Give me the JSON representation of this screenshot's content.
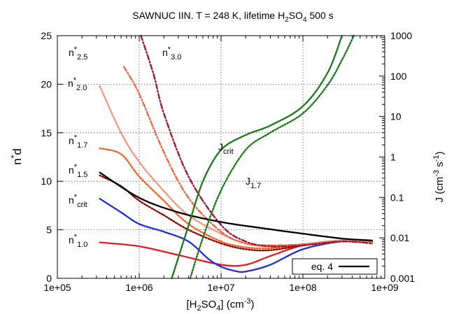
{
  "chart_data": {
    "type": "line",
    "title": "SAWNUC IIN. T = 248 K, lifetime H2SO4 500 s",
    "title_parts": {
      "pre": "SAWNUC IIN. T = 248 K, lifetime H",
      "sub": "2",
      "mid": "SO",
      "sub2": "4",
      "post": " 500 s"
    },
    "xlabel": {
      "pre": "[H",
      "sub": "2",
      "mid": "SO",
      "sub2": "4",
      "post": "] (cm",
      "sup": "-3",
      "end": ")"
    },
    "ylabel": {
      "pre": "n",
      "sup": "*",
      "post": "d"
    },
    "y2label": {
      "pre": "J (cm",
      "sup": "-3",
      "mid": " s",
      "sup2": "-1",
      "end": ")"
    },
    "x_scale": "log",
    "xlim": [
      100000,
      1000000000
    ],
    "ylim": [
      0,
      25
    ],
    "y2_scale": "log",
    "y2lim": [
      0.001,
      1000
    ],
    "grid": true,
    "legend_position": "bottom-right",
    "x_ticks": [
      "1e+05",
      "1e+06",
      "1e+07",
      "1e+08",
      "1e+09"
    ],
    "y_ticks": [
      "0",
      "5",
      "10",
      "15",
      "20",
      "25"
    ],
    "y2_ticks": [
      "0.001",
      "0.01",
      "0.1",
      "1",
      "10",
      "100",
      "1000"
    ],
    "legend": [
      {
        "label": "eq. 4",
        "color": "#000000"
      }
    ],
    "series": [
      {
        "name": "n*1.0",
        "axis": "y",
        "color": "#e41a1c",
        "dash": "solid",
        "x": [
          330000.0,
          1000000.0,
          3000000.0,
          10000000.0,
          20000000.0,
          40000000.0,
          100000000.0,
          300000000.0,
          700000000.0
        ],
        "y": [
          3.7,
          3.3,
          2.4,
          1.4,
          1.4,
          2.3,
          3.4,
          3.9,
          3.8
        ]
      },
      {
        "name": "n*crit",
        "axis": "y",
        "color": "#1f2de0",
        "dash": "solid",
        "x": [
          330000.0,
          600000.0,
          1000000.0,
          2000000.0,
          4000000.0,
          7000000.0,
          10000000.0,
          15000000.0,
          20000000.0,
          40000000.0,
          100000000.0,
          300000000.0,
          700000000.0
        ],
        "y": [
          8.2,
          6.8,
          5.6,
          4.8,
          3.8,
          2.0,
          1.2,
          0.75,
          0.7,
          1.4,
          3.0,
          3.8,
          3.7
        ]
      },
      {
        "name": "n*1.5",
        "axis": "y",
        "color": "#8b0000",
        "dash": "dot",
        "x": [
          330000.0,
          600000.0,
          1000000.0,
          2000000.0,
          4000000.0,
          10000000.0,
          20000000.0,
          40000000.0,
          100000000.0,
          300000000.0,
          700000000.0
        ],
        "y": [
          10.6,
          9.5,
          8.0,
          6.5,
          5.0,
          3.6,
          3.0,
          2.9,
          3.4,
          3.9,
          3.7
        ]
      },
      {
        "name": "n*1.7",
        "axis": "y",
        "color": "#f06020",
        "dash": "dot",
        "x": [
          330000.0,
          600000.0,
          1000000.0,
          2000000.0,
          4000000.0,
          10000000.0,
          20000000.0,
          40000000.0,
          100000000.0,
          300000000.0,
          700000000.0
        ],
        "y": [
          13.4,
          12.8,
          10.5,
          8.0,
          5.6,
          3.8,
          3.2,
          3.1,
          3.5,
          3.9,
          3.7
        ]
      },
      {
        "name": "n*2.0",
        "axis": "y",
        "color": "#f4907a",
        "dash": "dot",
        "x": [
          330000.0,
          600000.0,
          1000000.0,
          2000000.0,
          4000000.0,
          10000000.0,
          20000000.0,
          40000000.0,
          100000000.0,
          300000000.0,
          700000000.0
        ],
        "y": [
          19.8,
          15.0,
          12.0,
          9.0,
          6.5,
          4.6,
          3.6,
          3.3,
          3.5,
          3.9,
          3.7
        ]
      },
      {
        "name": "n*2.5",
        "axis": "y",
        "color": "#f06448",
        "dash": "dashdot",
        "x": [
          650000.0,
          1000000.0,
          2000000.0,
          4000000.0,
          10000000.0,
          20000000.0,
          40000000.0,
          100000000.0,
          300000000.0,
          700000000.0
        ],
        "y": [
          21.8,
          19.0,
          13.0,
          8.3,
          4.8,
          3.6,
          3.4,
          3.5,
          3.8,
          3.6
        ]
      },
      {
        "name": "n*3.0",
        "axis": "y",
        "color": "#a01830",
        "dash": "dashdot",
        "x": [
          1050000.0,
          1500000.0,
          2000000.0,
          4000000.0,
          10000000.0,
          20000000.0,
          40000000.0,
          100000000.0,
          300000000.0,
          700000000.0
        ],
        "y": [
          25.0,
          21.0,
          17.0,
          10.5,
          5.5,
          3.8,
          3.3,
          3.4,
          3.8,
          3.6
        ]
      },
      {
        "name": "eq. 4",
        "axis": "y",
        "color": "#000000",
        "dash": "solid",
        "x": [
          330000.0,
          1000000.0,
          3000000.0,
          10000000.0,
          30000000.0,
          100000000.0,
          300000000.0,
          700000000.0
        ],
        "y": [
          10.9,
          8.3,
          6.8,
          5.8,
          5.2,
          4.6,
          4.1,
          3.9
        ]
      },
      {
        "name": "Jcrit",
        "axis": "y2",
        "color": "#1a7a1a",
        "dash": "solid",
        "x": [
          2500000.0,
          4000000.0,
          6000000.0,
          10000000.0,
          20000000.0,
          40000000.0,
          100000000.0,
          200000000.0,
          300000000.0
        ],
        "y": [
          0.001,
          0.02,
          0.25,
          1.5,
          3.5,
          6,
          18,
          120,
          1000
        ]
      },
      {
        "name": "J1.7",
        "axis": "y2",
        "color": "#1a7a1a",
        "dash": "dot",
        "x": [
          4200000.0,
          6000000.0,
          10000000.0,
          20000000.0,
          40000000.0,
          100000000.0,
          200000000.0,
          300000000.0,
          420000000.0
        ],
        "y": [
          0.001,
          0.01,
          0.15,
          1.5,
          4,
          12,
          60,
          250,
          1000
        ]
      }
    ],
    "annotations": [
      {
        "label": "n*2.5",
        "pre": "n",
        "sup": "*",
        "sub": "2.5",
        "color": "#f06448"
      },
      {
        "label": "n*3.0",
        "pre": "n",
        "sup": "*",
        "sub": "3.0",
        "color": "#a01830"
      },
      {
        "label": "n*2.0",
        "pre": "n",
        "sup": "*",
        "sub": "2.0",
        "color": "#f4907a"
      },
      {
        "label": "n*1.7",
        "pre": "n",
        "sup": "*",
        "sub": "1.7",
        "color": "#f06020"
      },
      {
        "label": "n*1.5",
        "pre": "n",
        "sup": "*",
        "sub": "1.5",
        "color": "#8b0000"
      },
      {
        "label": "n*crit",
        "pre": "n",
        "sup": "*",
        "sub": "crit",
        "color": "#1f2de0"
      },
      {
        "label": "n*1.0",
        "pre": "n",
        "sup": "*",
        "sub": "1.0",
        "color": "#e41a1c"
      },
      {
        "label": "Jcrit",
        "pre": "J",
        "sup": "",
        "sub": "crit",
        "color": "#1a7a1a"
      },
      {
        "label": "J1.7",
        "pre": "J",
        "sup": "",
        "sub": "1.7",
        "color": "#1a7a1a"
      }
    ]
  }
}
